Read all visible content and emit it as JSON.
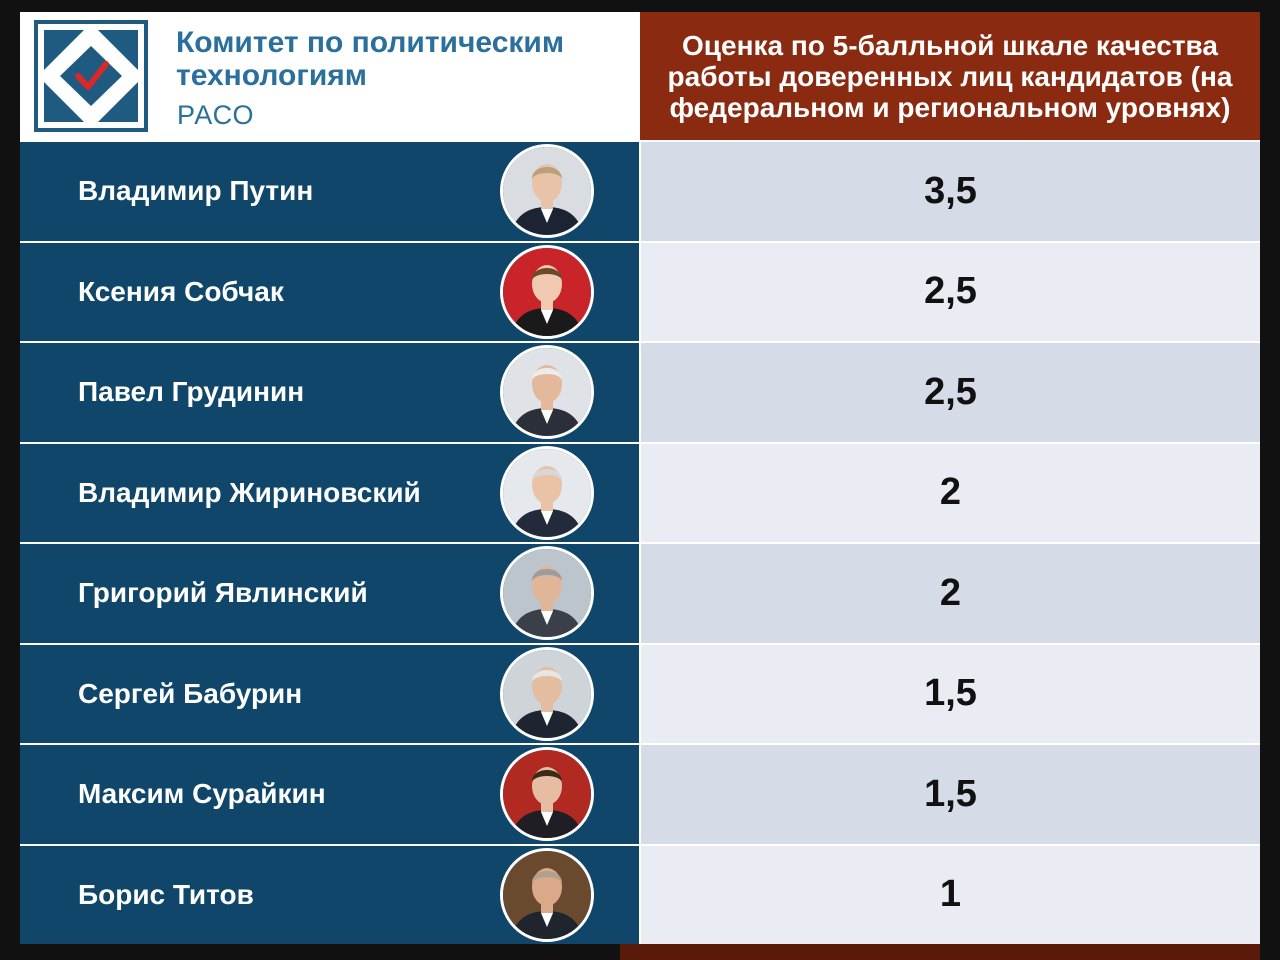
{
  "logo": {
    "title_line1": "Комитет по политическим",
    "title_line2": "технологиям",
    "subtitle": "РАСО"
  },
  "header": {
    "title": "Оценка по 5-балльной шкале качества работы доверенных лиц кандидатов (на федеральном и региональном уровнях)"
  },
  "colors": {
    "name_column_bg": "#0f4669",
    "header_bg": "#8a2a10",
    "score_odd_bg": "#d5dbe7",
    "score_even_bg": "#e9ecf3",
    "logo_text": "#2b6f9c"
  },
  "rows": [
    {
      "name": "Владимир Путин",
      "score": "3,5"
    },
    {
      "name": "Ксения Собчак",
      "score": "2,5"
    },
    {
      "name": "Павел Грудинин",
      "score": "2,5"
    },
    {
      "name": "Владимир Жириновский",
      "score": "2"
    },
    {
      "name": "Григорий Явлинский",
      "score": "2"
    },
    {
      "name": "Сергей Бабурин",
      "score": "1,5"
    },
    {
      "name": "Максим Сурайкин",
      "score": "1,5"
    },
    {
      "name": "Борис Титов",
      "score": "1"
    }
  ]
}
